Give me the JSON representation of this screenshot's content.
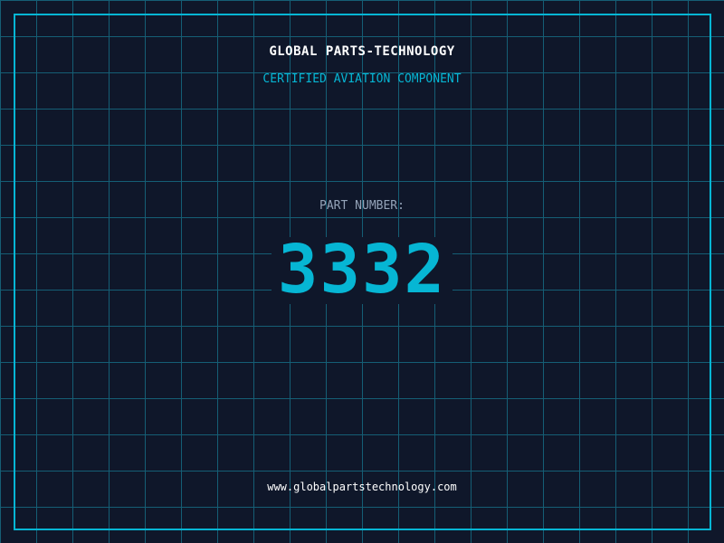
{
  "header": {
    "title": "GLOBAL PARTS-TECHNOLOGY",
    "subtitle": "CERTIFIED AVIATION COMPONENT"
  },
  "part": {
    "label": "PART NUMBER:",
    "number": "3332"
  },
  "footer": {
    "url": "www.globalpartstechnology.com"
  },
  "colors": {
    "background": "#0f172a",
    "accent": "#06b6d4",
    "grid": "#155e75"
  }
}
